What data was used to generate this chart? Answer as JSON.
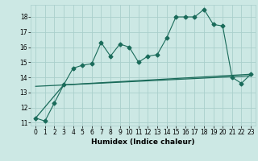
{
  "title": "",
  "xlabel": "Humidex (Indice chaleur)",
  "bg_color": "#cce8e4",
  "grid_color": "#aacfcc",
  "line_color": "#1a6b5a",
  "xlim": [
    -0.5,
    23.5
  ],
  "ylim": [
    10.8,
    18.8
  ],
  "yticks": [
    11,
    12,
    13,
    14,
    15,
    16,
    17,
    18
  ],
  "xticks": [
    0,
    1,
    2,
    3,
    4,
    5,
    6,
    7,
    8,
    9,
    10,
    11,
    12,
    13,
    14,
    15,
    16,
    17,
    18,
    19,
    20,
    21,
    22,
    23
  ],
  "series1_x": [
    0,
    1,
    2,
    3,
    4,
    5,
    6,
    7,
    8,
    9,
    10,
    11,
    12,
    13,
    14,
    15,
    16,
    17,
    18,
    19,
    20,
    21,
    22,
    23
  ],
  "series1_y": [
    11.3,
    11.1,
    12.3,
    13.5,
    14.6,
    14.8,
    14.9,
    16.3,
    15.4,
    16.2,
    16.0,
    15.0,
    15.4,
    15.5,
    16.6,
    18.0,
    18.0,
    18.0,
    18.5,
    17.5,
    17.4,
    14.0,
    13.6,
    14.2
  ],
  "series2_x": [
    0,
    3,
    23
  ],
  "series2_y": [
    11.3,
    13.5,
    14.2
  ],
  "series3_x": [
    0,
    23
  ],
  "series3_y": [
    13.4,
    14.1
  ],
  "marker_size": 2.5,
  "tick_fontsize": 5.5,
  "xlabel_fontsize": 6.5
}
